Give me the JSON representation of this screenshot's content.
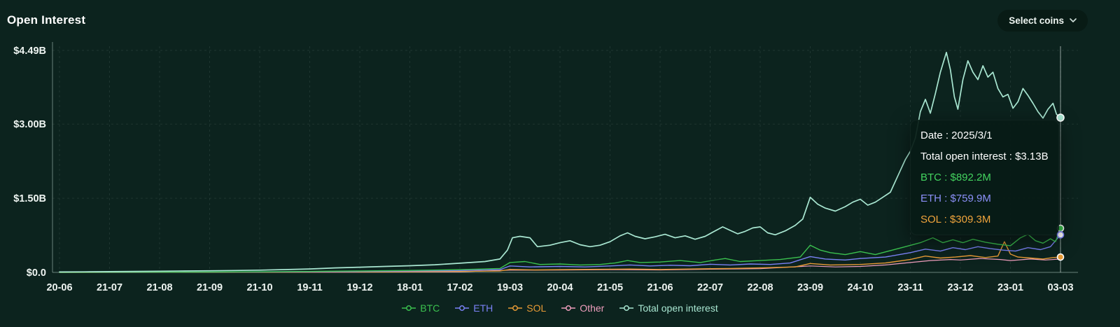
{
  "header": {
    "title": "Open Interest",
    "select_coins_label": "Select coins",
    "select_coins_icon": "chevron-down"
  },
  "colors": {
    "background": "#0c231e",
    "grid": "rgba(219,241,233,0.09)",
    "axis": "rgba(219,241,233,0.45)",
    "crosshair": "rgba(230,240,236,0.6)",
    "tick_text": "#eef4f1",
    "btc": "#3bc14f",
    "eth": "#7a81f5",
    "sol": "#e79a35",
    "other": "#ef9ebd",
    "total": "#a9e7d2"
  },
  "tooltip": {
    "rows": [
      {
        "id": "date",
        "text": "Date : 2025/3/1",
        "color": "#ffffff"
      },
      {
        "id": "total",
        "text": "Total open interest : $3.13B",
        "color": "#ffffff"
      },
      {
        "id": "btc",
        "text": "BTC : $892.2M",
        "color": "#43d35f"
      },
      {
        "id": "eth",
        "text": "ETH : $759.9M",
        "color": "#8b90f8"
      },
      {
        "id": "sol",
        "text": "SOL : $309.3M",
        "color": "#f0a43c"
      }
    ]
  },
  "legend": [
    {
      "id": "btc",
      "label": "BTC",
      "color": "#3bc14f"
    },
    {
      "id": "eth",
      "label": "ETH",
      "color": "#7a81f5"
    },
    {
      "id": "sol",
      "label": "SOL",
      "color": "#e79a35"
    },
    {
      "id": "other",
      "label": "Other",
      "color": "#ef9ebd"
    },
    {
      "id": "total",
      "label": "Total open interest",
      "color": "#a9e7d2"
    }
  ],
  "chart_data": {
    "type": "line",
    "title": "Open Interest",
    "unit": "USD (billions)",
    "grid": "dashed",
    "legend_position": "bottom",
    "xlim": [
      0,
      20
    ],
    "ylim": [
      0,
      4.575
    ],
    "crosshair_pos": 20,
    "x_tick_labels": [
      "20-06",
      "21-07",
      "21-08",
      "21-09",
      "21-10",
      "19-11",
      "19-12",
      "18-01",
      "17-02",
      "19-03",
      "20-04",
      "21-05",
      "21-06",
      "22-07",
      "22-08",
      "23-09",
      "24-10",
      "23-11",
      "23-12",
      "23-01",
      "03-03"
    ],
    "y_ticks": [
      {
        "value": 0,
        "label": "$0.0"
      },
      {
        "value": 1.5,
        "label": "$1.50B"
      },
      {
        "value": 3.0,
        "label": "$3.00B"
      },
      {
        "value": 4.49,
        "label": "$4.49B"
      }
    ],
    "series": [
      {
        "id": "other",
        "name": "Other",
        "color": "#ef9ebd",
        "width": 1.2,
        "points": [
          [
            0,
            0.0005
          ],
          [
            4,
            0.002
          ],
          [
            6,
            0.006
          ],
          [
            8,
            0.012
          ],
          [
            9,
            0.045
          ],
          [
            10,
            0.047
          ],
          [
            11,
            0.055
          ],
          [
            12,
            0.05
          ],
          [
            13,
            0.065
          ],
          [
            14,
            0.075
          ],
          [
            15,
            0.13
          ],
          [
            15.5,
            0.11
          ],
          [
            16,
            0.12
          ],
          [
            16.5,
            0.15
          ],
          [
            17,
            0.2
          ],
          [
            17.4,
            0.24
          ],
          [
            17.8,
            0.26
          ],
          [
            18,
            0.25
          ],
          [
            18.4,
            0.28
          ],
          [
            18.8,
            0.26
          ],
          [
            19,
            0.24
          ],
          [
            19.4,
            0.27
          ],
          [
            19.7,
            0.25
          ],
          [
            20,
            0.27
          ]
        ]
      },
      {
        "id": "sol",
        "name": "SOL",
        "color": "#e79a35",
        "width": 1.4,
        "points": [
          [
            0,
            0.0005
          ],
          [
            3,
            0.002
          ],
          [
            5,
            0.006
          ],
          [
            6,
            0.01
          ],
          [
            7,
            0.014
          ],
          [
            8,
            0.02
          ],
          [
            8.8,
            0.03
          ],
          [
            9,
            0.06
          ],
          [
            9.5,
            0.05
          ],
          [
            10,
            0.055
          ],
          [
            10.8,
            0.062
          ],
          [
            11.4,
            0.068
          ],
          [
            12,
            0.06
          ],
          [
            12.8,
            0.072
          ],
          [
            13.4,
            0.08
          ],
          [
            14,
            0.09
          ],
          [
            14.7,
            0.11
          ],
          [
            15,
            0.18
          ],
          [
            15.4,
            0.15
          ],
          [
            16,
            0.16
          ],
          [
            16.5,
            0.19
          ],
          [
            17,
            0.26
          ],
          [
            17.3,
            0.33
          ],
          [
            17.6,
            0.29
          ],
          [
            17.9,
            0.31
          ],
          [
            18.2,
            0.34
          ],
          [
            18.5,
            0.3
          ],
          [
            18.75,
            0.33
          ],
          [
            18.88,
            0.62
          ],
          [
            19,
            0.37
          ],
          [
            19.15,
            0.31
          ],
          [
            19.4,
            0.29
          ],
          [
            19.65,
            0.27
          ],
          [
            19.85,
            0.3
          ],
          [
            20,
            0.309
          ]
        ]
      },
      {
        "id": "eth",
        "name": "ETH",
        "color": "#7a81f5",
        "width": 1.4,
        "points": [
          [
            0,
            0.001
          ],
          [
            2,
            0.004
          ],
          [
            4,
            0.009
          ],
          [
            5,
            0.014
          ],
          [
            6,
            0.02
          ],
          [
            7,
            0.028
          ],
          [
            8,
            0.038
          ],
          [
            8.8,
            0.055
          ],
          [
            9,
            0.13
          ],
          [
            9.4,
            0.11
          ],
          [
            10,
            0.12
          ],
          [
            10.5,
            0.11
          ],
          [
            11,
            0.13
          ],
          [
            11.4,
            0.15
          ],
          [
            11.8,
            0.13
          ],
          [
            12.2,
            0.145
          ],
          [
            12.6,
            0.135
          ],
          [
            13,
            0.165
          ],
          [
            13.4,
            0.15
          ],
          [
            13.8,
            0.17
          ],
          [
            14.2,
            0.16
          ],
          [
            14.6,
            0.19
          ],
          [
            15,
            0.32
          ],
          [
            15.3,
            0.27
          ],
          [
            15.7,
            0.25
          ],
          [
            16,
            0.28
          ],
          [
            16.5,
            0.31
          ],
          [
            17,
            0.4
          ],
          [
            17.3,
            0.47
          ],
          [
            17.6,
            0.43
          ],
          [
            17.85,
            0.5
          ],
          [
            18.1,
            0.46
          ],
          [
            18.35,
            0.52
          ],
          [
            18.6,
            0.48
          ],
          [
            18.85,
            0.45
          ],
          [
            19.1,
            0.43
          ],
          [
            19.35,
            0.5
          ],
          [
            19.6,
            0.46
          ],
          [
            19.8,
            0.52
          ],
          [
            20,
            0.76
          ]
        ]
      },
      {
        "id": "btc",
        "name": "BTC",
        "color": "#3bc14f",
        "width": 1.4,
        "points": [
          [
            0,
            0.002
          ],
          [
            1,
            0.004
          ],
          [
            2,
            0.006
          ],
          [
            3,
            0.009
          ],
          [
            4,
            0.013
          ],
          [
            5,
            0.02
          ],
          [
            6,
            0.03
          ],
          [
            7,
            0.04
          ],
          [
            8,
            0.055
          ],
          [
            8.8,
            0.08
          ],
          [
            9,
            0.2
          ],
          [
            9.3,
            0.22
          ],
          [
            9.6,
            0.16
          ],
          [
            10,
            0.17
          ],
          [
            10.4,
            0.15
          ],
          [
            10.8,
            0.16
          ],
          [
            11.1,
            0.19
          ],
          [
            11.35,
            0.24
          ],
          [
            11.6,
            0.2
          ],
          [
            12,
            0.21
          ],
          [
            12.4,
            0.24
          ],
          [
            12.8,
            0.2
          ],
          [
            13.1,
            0.25
          ],
          [
            13.3,
            0.28
          ],
          [
            13.6,
            0.22
          ],
          [
            14,
            0.24
          ],
          [
            14.4,
            0.26
          ],
          [
            14.8,
            0.31
          ],
          [
            15,
            0.55
          ],
          [
            15.2,
            0.45
          ],
          [
            15.4,
            0.4
          ],
          [
            15.7,
            0.36
          ],
          [
            16,
            0.42
          ],
          [
            16.3,
            0.36
          ],
          [
            16.6,
            0.44
          ],
          [
            16.9,
            0.52
          ],
          [
            17.2,
            0.6
          ],
          [
            17.45,
            0.7
          ],
          [
            17.65,
            0.6
          ],
          [
            17.85,
            0.66
          ],
          [
            18.05,
            0.6
          ],
          [
            18.25,
            0.67
          ],
          [
            18.5,
            0.61
          ],
          [
            18.75,
            0.57
          ],
          [
            19,
            0.54
          ],
          [
            19.2,
            0.7
          ],
          [
            19.35,
            0.77
          ],
          [
            19.5,
            0.64
          ],
          [
            19.65,
            0.59
          ],
          [
            19.8,
            0.68
          ],
          [
            19.9,
            0.62
          ],
          [
            20,
            0.892
          ]
        ]
      },
      {
        "id": "total",
        "name": "Total open interest",
        "color": "#a9e7d2",
        "width": 1.7,
        "points": [
          [
            0,
            0.01
          ],
          [
            0.5,
            0.012
          ],
          [
            1,
            0.016
          ],
          [
            1.5,
            0.02
          ],
          [
            2,
            0.024
          ],
          [
            2.5,
            0.028
          ],
          [
            3,
            0.032
          ],
          [
            3.5,
            0.038
          ],
          [
            4,
            0.046
          ],
          [
            4.5,
            0.056
          ],
          [
            5,
            0.07
          ],
          [
            5.5,
            0.09
          ],
          [
            6,
            0.105
          ],
          [
            6.5,
            0.12
          ],
          [
            7,
            0.135
          ],
          [
            7.5,
            0.155
          ],
          [
            8,
            0.185
          ],
          [
            8.5,
            0.22
          ],
          [
            8.8,
            0.27
          ],
          [
            8.95,
            0.45
          ],
          [
            9.05,
            0.7
          ],
          [
            9.2,
            0.73
          ],
          [
            9.4,
            0.7
          ],
          [
            9.55,
            0.52
          ],
          [
            9.8,
            0.55
          ],
          [
            10,
            0.6
          ],
          [
            10.2,
            0.64
          ],
          [
            10.4,
            0.56
          ],
          [
            10.6,
            0.52
          ],
          [
            10.8,
            0.55
          ],
          [
            11,
            0.62
          ],
          [
            11.2,
            0.74
          ],
          [
            11.35,
            0.8
          ],
          [
            11.5,
            0.73
          ],
          [
            11.7,
            0.68
          ],
          [
            11.9,
            0.72
          ],
          [
            12.1,
            0.77
          ],
          [
            12.3,
            0.7
          ],
          [
            12.5,
            0.74
          ],
          [
            12.7,
            0.67
          ],
          [
            12.9,
            0.73
          ],
          [
            13.1,
            0.84
          ],
          [
            13.25,
            0.92
          ],
          [
            13.4,
            0.85
          ],
          [
            13.55,
            0.78
          ],
          [
            13.7,
            0.83
          ],
          [
            13.85,
            0.9
          ],
          [
            14,
            0.92
          ],
          [
            14.15,
            0.8
          ],
          [
            14.3,
            0.76
          ],
          [
            14.5,
            0.84
          ],
          [
            14.7,
            0.95
          ],
          [
            14.85,
            1.08
          ],
          [
            15,
            1.52
          ],
          [
            15.15,
            1.38
          ],
          [
            15.3,
            1.3
          ],
          [
            15.5,
            1.24
          ],
          [
            15.7,
            1.33
          ],
          [
            15.85,
            1.42
          ],
          [
            16,
            1.48
          ],
          [
            16.15,
            1.36
          ],
          [
            16.3,
            1.42
          ],
          [
            16.45,
            1.52
          ],
          [
            16.6,
            1.62
          ],
          [
            16.75,
            1.95
          ],
          [
            16.9,
            2.28
          ],
          [
            17,
            2.45
          ],
          [
            17.1,
            2.72
          ],
          [
            17.2,
            3.25
          ],
          [
            17.3,
            3.5
          ],
          [
            17.4,
            3.22
          ],
          [
            17.5,
            3.62
          ],
          [
            17.6,
            4.05
          ],
          [
            17.72,
            4.45
          ],
          [
            17.8,
            4.1
          ],
          [
            17.88,
            3.55
          ],
          [
            17.95,
            3.3
          ],
          [
            18.05,
            3.9
          ],
          [
            18.15,
            4.28
          ],
          [
            18.25,
            4.05
          ],
          [
            18.35,
            3.9
          ],
          [
            18.45,
            4.18
          ],
          [
            18.55,
            3.95
          ],
          [
            18.65,
            4.05
          ],
          [
            18.75,
            3.72
          ],
          [
            18.85,
            3.55
          ],
          [
            18.95,
            3.6
          ],
          [
            19.05,
            3.32
          ],
          [
            19.15,
            3.45
          ],
          [
            19.25,
            3.72
          ],
          [
            19.35,
            3.58
          ],
          [
            19.45,
            3.42
          ],
          [
            19.55,
            3.25
          ],
          [
            19.65,
            3.12
          ],
          [
            19.75,
            3.3
          ],
          [
            19.85,
            3.42
          ],
          [
            19.92,
            3.2
          ],
          [
            20,
            3.13
          ]
        ]
      }
    ],
    "end_markers": [
      {
        "id": "total",
        "value": 3.13,
        "fill": "#a9e7d2",
        "stroke": "#ffffff",
        "r": 5
      },
      {
        "id": "btc",
        "value": 0.892,
        "fill": "#3bc14f",
        "stroke": "#ffffff",
        "r": 4.5
      },
      {
        "id": "eth",
        "value": 0.7599,
        "fill": "#ffffff",
        "stroke": "#7a81f5",
        "r": 4.5
      },
      {
        "id": "sol",
        "value": 0.3093,
        "fill": "#e79a35",
        "stroke": "#ffffff",
        "r": 4.5
      }
    ]
  }
}
